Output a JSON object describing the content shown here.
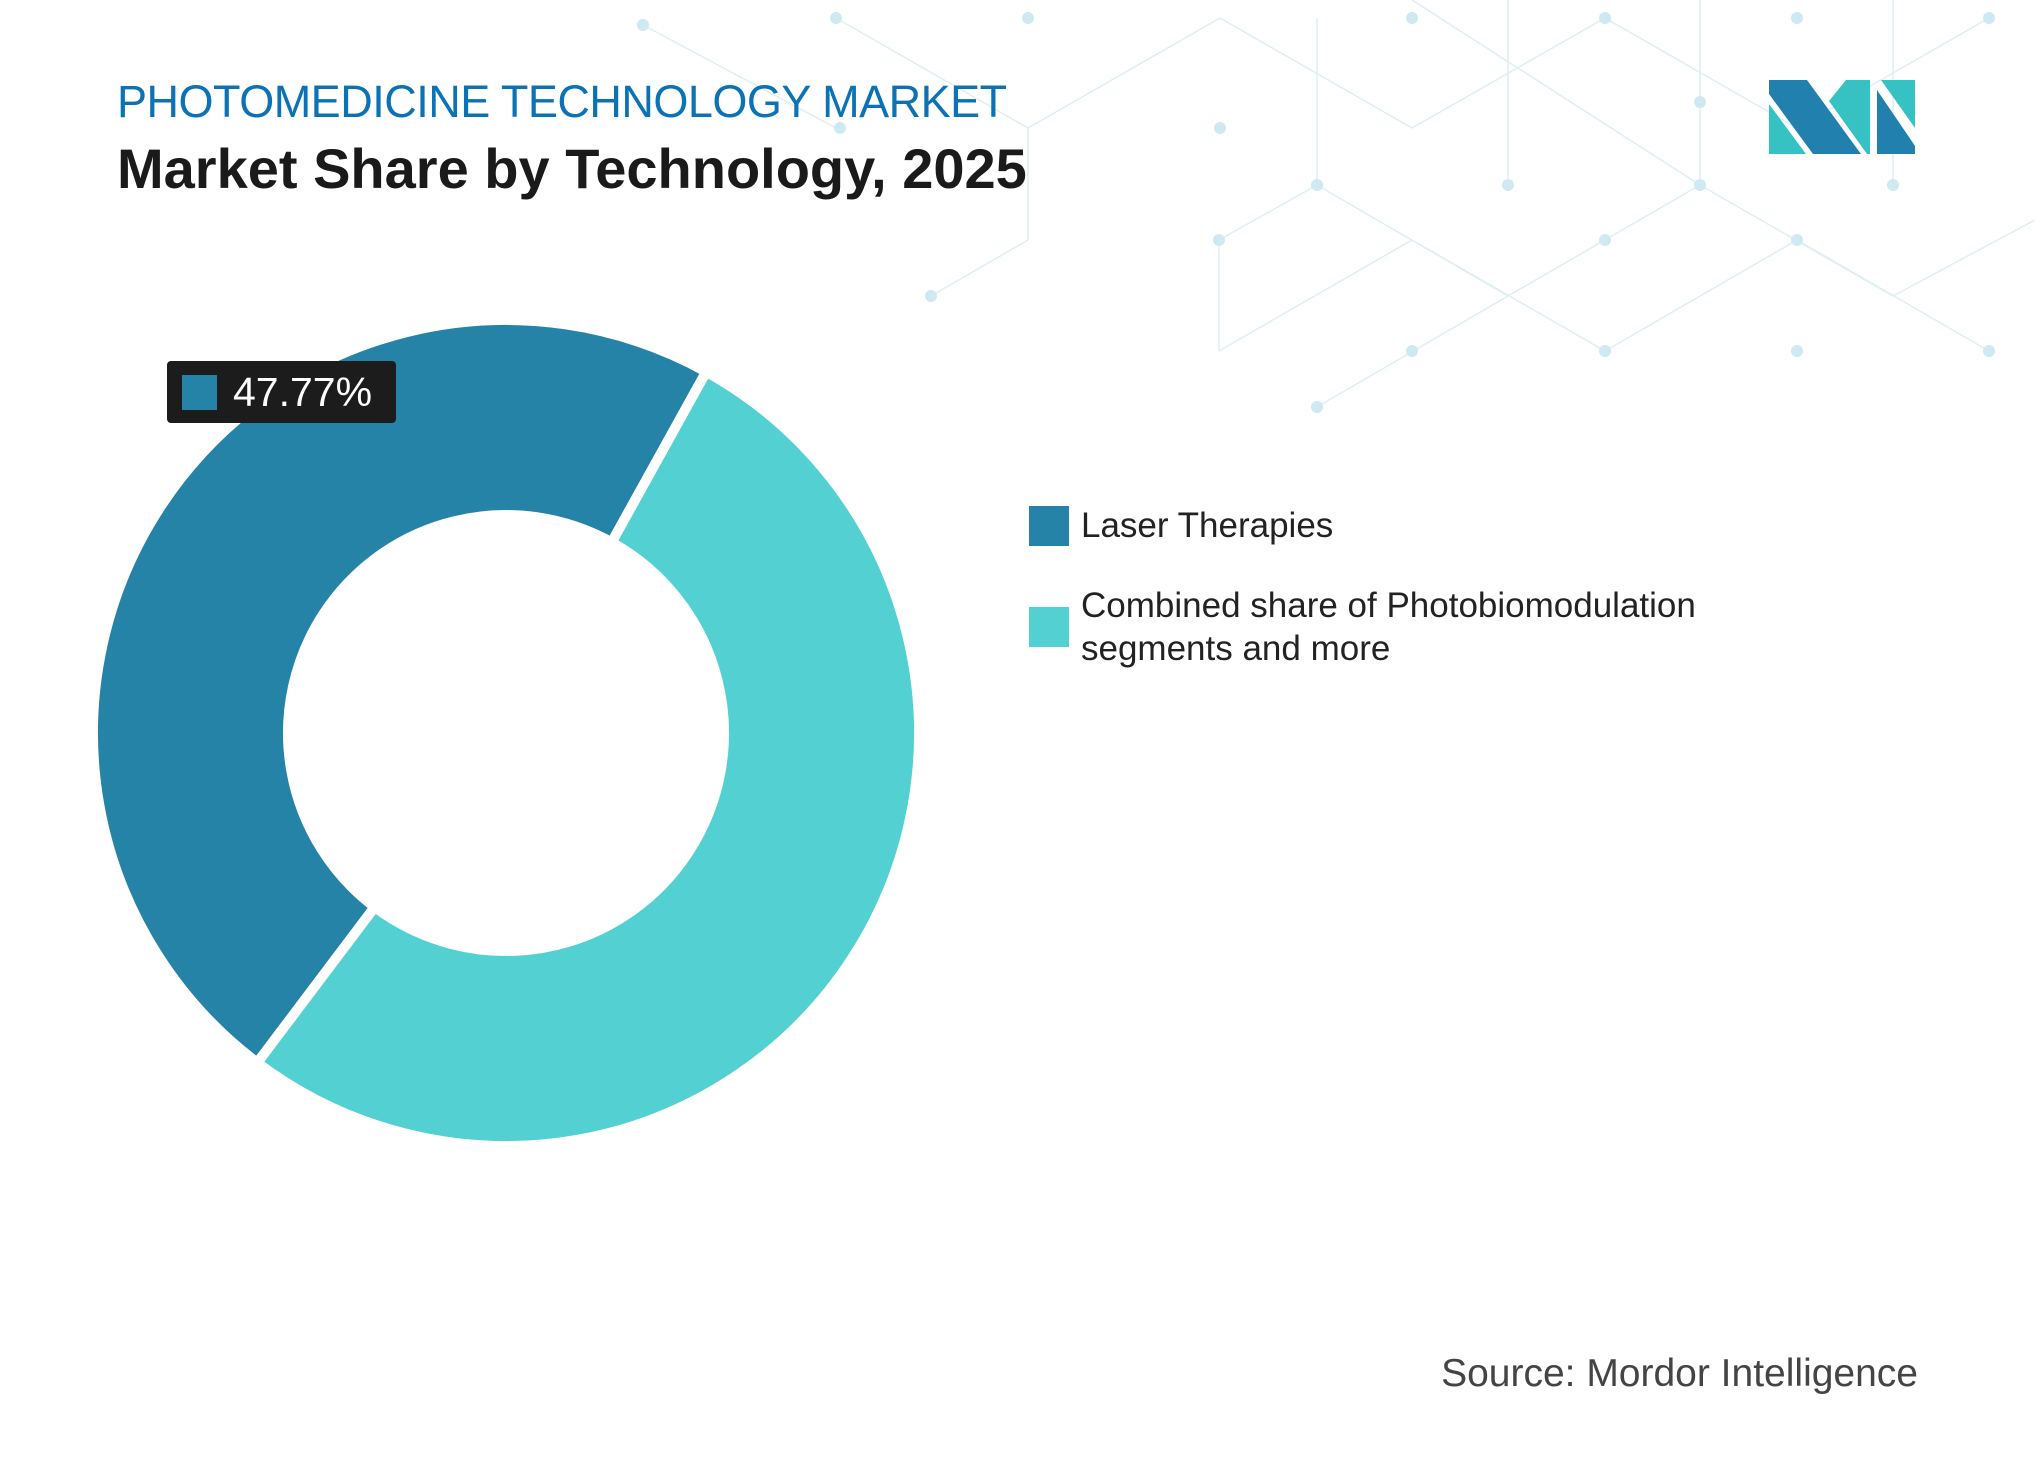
{
  "header": {
    "kicker": "PHOTOMEDICINE TECHNOLOGY MARKET",
    "title": "Market Share by Technology, 2025"
  },
  "colors": {
    "laser": "#2683a8",
    "other": "#52d0d2",
    "kicker": "#0b72b5"
  },
  "chart_data": {
    "type": "pie",
    "style": "donut",
    "categories": [
      "Laser Therapies",
      "Combined share of Photobiomodulation segments and more"
    ],
    "values": [
      47.77,
      52.23
    ],
    "data_labels": [
      "47.77%"
    ],
    "legend_placement": "right"
  },
  "legend": {
    "items": [
      {
        "label": "Laser Therapies"
      },
      {
        "label": "Combined share of Photobiomodulation segments and more"
      }
    ]
  },
  "badge": {
    "text": "47.77%"
  },
  "source": "Source: Mordor Intelligence",
  "logo": {
    "icon": "mordor-intelligence-logo"
  }
}
